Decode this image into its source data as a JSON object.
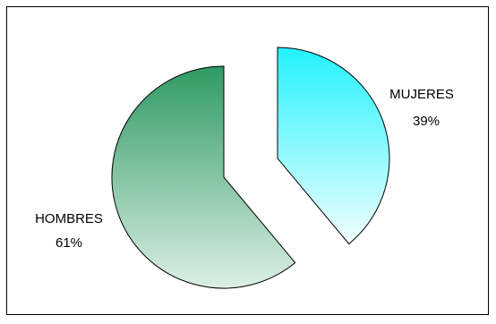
{
  "chart_data": {
    "type": "pie",
    "exploded": true,
    "slices": [
      {
        "label": "MUJERES",
        "value": 39,
        "value_text": "39%",
        "color_top": "#22f2ff",
        "color_bottom": "#f2ffff"
      },
      {
        "label": "HOMBRES",
        "value": 61,
        "value_text": "61%",
        "color_top": "#2f9a63",
        "color_bottom": "#dcefe4"
      }
    ],
    "outline_color": "#000000",
    "frame_color": "#000000"
  }
}
